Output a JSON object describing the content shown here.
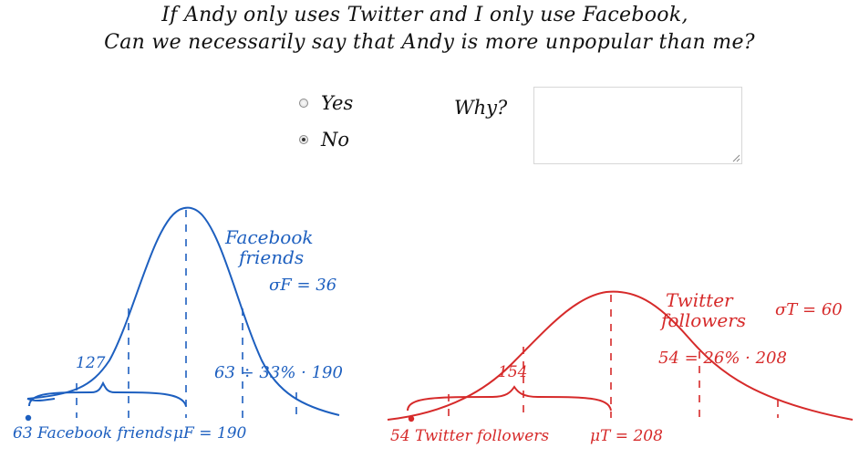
{
  "question": {
    "line1": "If Andy only uses Twitter and I only use Facebook,",
    "line2": "Can we necessarily say that Andy is more unpopular than me?"
  },
  "options": [
    {
      "label": "Yes",
      "selected": false
    },
    {
      "label": "No",
      "selected": true
    }
  ],
  "why": {
    "label": "Why?",
    "value": ""
  },
  "facebook": {
    "title_line1": "Facebook",
    "title_line2": "friends",
    "sigma": "σF = 36",
    "left_value": "127",
    "right_annotation": "63 ÷ 33% · 190",
    "point_label": "63 Facebook friends",
    "mean_label": "μF = 190",
    "color": "#1d5fbf"
  },
  "twitter": {
    "title_line1": "Twitter",
    "title_line2": "followers",
    "sigma": "σT = 60",
    "left_value": "154",
    "right_annotation": "54 = 26% · 208",
    "point_label": "54 Twitter followers",
    "mean_label": "μT = 208",
    "color": "#d62a2a"
  }
}
